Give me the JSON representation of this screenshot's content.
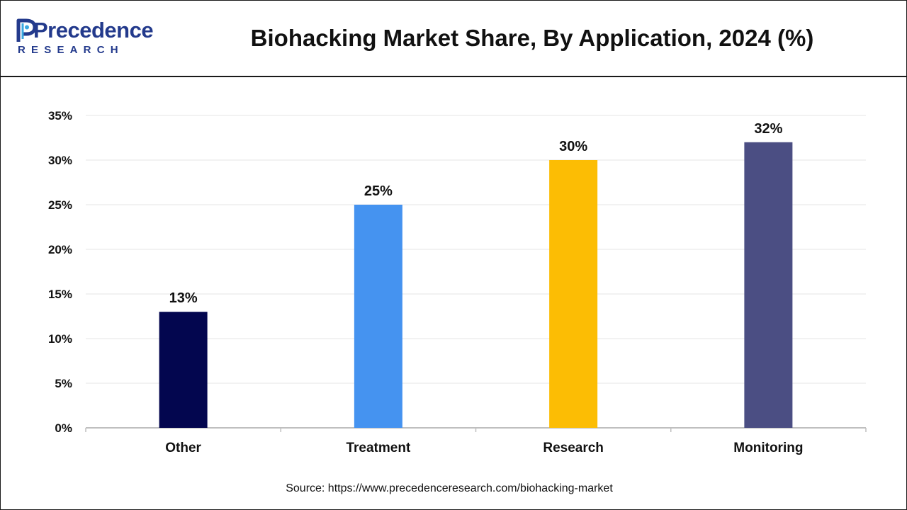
{
  "header": {
    "logo_word": "Precedence",
    "logo_sub": "RESEARCH",
    "title": "Biohacking Market Share, By Application, 2024 (%)"
  },
  "colors": {
    "brand": "#233a8c",
    "brand_accent": "#3aa8e0",
    "gridline": "#e6e6e6",
    "axis": "#bfbfbf"
  },
  "chart_data": {
    "type": "bar",
    "title": "Biohacking Market Share, By Application, 2024 (%)",
    "xlabel": "",
    "ylabel": "",
    "ylim": [
      0,
      35
    ],
    "yticks": [
      0,
      5,
      10,
      15,
      20,
      25,
      30,
      35
    ],
    "ytick_labels": [
      "0%",
      "5%",
      "10%",
      "15%",
      "20%",
      "25%",
      "30%",
      "35%"
    ],
    "grid": true,
    "legend": "none",
    "categories": [
      "Other",
      "Treatment",
      "Research",
      "Monitoring"
    ],
    "values": [
      13,
      25,
      30,
      32
    ],
    "value_labels": [
      "13%",
      "25%",
      "30%",
      "32%"
    ],
    "bar_colors": [
      "#03064f",
      "#4593f0",
      "#fcbd04",
      "#4b4e83"
    ]
  },
  "source": "Source: https://www.precedenceresearch.com/biohacking-market"
}
